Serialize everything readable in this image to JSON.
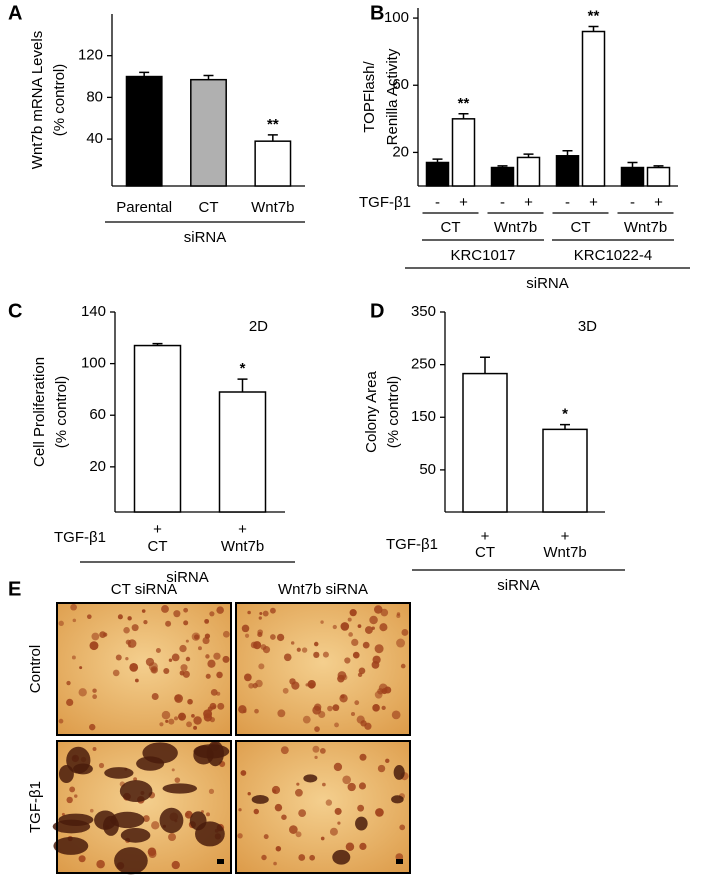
{
  "chart_data": [
    {
      "type": "bar",
      "panel": "A",
      "ylabel": [
        "Wnt7b mRNA Levels",
        "(% control)"
      ],
      "categories": [
        "Parental",
        "CT",
        "Wnt7b"
      ],
      "values": [
        100,
        97,
        38
      ],
      "errors": [
        4,
        4,
        6
      ],
      "colors": [
        "#000000",
        "#b0b0b0",
        "#ffffff"
      ],
      "annotations": [
        {
          "index": 2,
          "text": "**"
        }
      ],
      "group_label": "siRNA",
      "ylim": [
        -5,
        160
      ],
      "yticks": [
        40,
        80,
        120
      ]
    },
    {
      "type": "grouped_bar",
      "panel": "B",
      "ylabel": [
        "TOPFlash/",
        "Renilla Activity"
      ],
      "row_label": "TGF-β1",
      "categories": [
        "CT",
        "Wnt7b",
        "CT",
        "Wnt7b"
      ],
      "groups": [
        "KRC1017",
        "KRC1022-4"
      ],
      "group_label": "siRNA",
      "series": [
        {
          "name": "-",
          "color": "#000000",
          "values": [
            14,
            11,
            18,
            11
          ],
          "errors": [
            2,
            1,
            3,
            3
          ]
        },
        {
          "name": "+",
          "color": "#ffffff",
          "values": [
            40,
            17,
            92,
            11
          ],
          "errors": [
            3,
            2,
            3,
            1
          ]
        }
      ],
      "annotations": [
        {
          "series": 1,
          "index": 0,
          "text": "**"
        },
        {
          "series": 1,
          "index": 2,
          "text": "**"
        }
      ],
      "ylim": [
        0,
        106
      ],
      "yticks": [
        20,
        60,
        100
      ]
    },
    {
      "type": "bar",
      "panel": "C",
      "corner_label": "2D",
      "ylabel": [
        "Cell Proliferation",
        "(% control)"
      ],
      "row_label": "TGF-β1",
      "row_values": [
        "+",
        "+"
      ],
      "categories": [
        "CT",
        "Wnt7b"
      ],
      "values": [
        114,
        78
      ],
      "errors": [
        1.5,
        10
      ],
      "colors": [
        "#ffffff",
        "#ffffff"
      ],
      "annotations": [
        {
          "index": 1,
          "text": "*"
        }
      ],
      "group_label": "siRNA",
      "ylim": [
        -15,
        140
      ],
      "yticks": [
        20,
        60,
        100,
        140
      ]
    },
    {
      "type": "bar",
      "panel": "D",
      "corner_label": "3D",
      "ylabel": [
        "Colony Area",
        "(% control)"
      ],
      "row_label": "TGF-β1",
      "row_values": [
        "+",
        "+"
      ],
      "categories": [
        "CT",
        "Wnt7b"
      ],
      "values": [
        233,
        127
      ],
      "errors": [
        31,
        9
      ],
      "colors": [
        "#ffffff",
        "#ffffff"
      ],
      "annotations": [
        {
          "index": 1,
          "text": "*"
        }
      ],
      "group_label": "siRNA",
      "ylim": [
        -30,
        350
      ],
      "yticks": [
        50,
        150,
        250,
        350
      ]
    }
  ],
  "images": {
    "panel": "E",
    "columns": [
      "CT siRNA",
      "Wnt7b siRNA"
    ],
    "rows": [
      "Control",
      "TGF-β1"
    ]
  }
}
